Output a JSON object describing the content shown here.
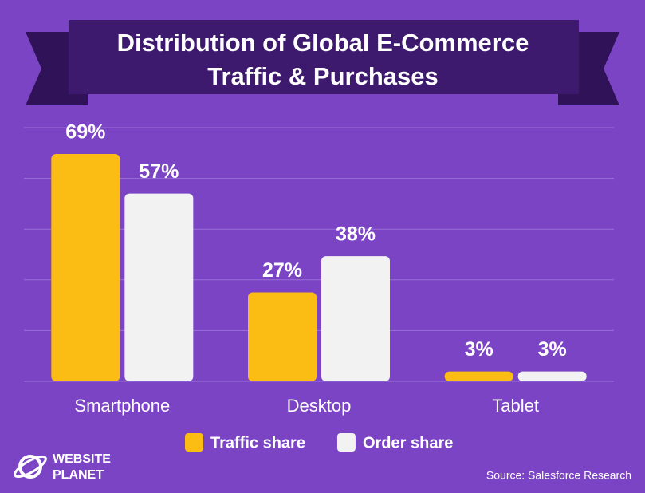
{
  "chart_data": {
    "type": "bar",
    "title": "Distribution of Global E-Commerce Traffic & Purchases",
    "categories": [
      "Smartphone",
      "Desktop",
      "Tablet"
    ],
    "series": [
      {
        "name": "Traffic share",
        "color": "#fbbd14",
        "values": [
          69,
          27,
          3
        ],
        "value_labels": [
          "69%",
          "27%",
          "3%"
        ]
      },
      {
        "name": "Order share",
        "color": "#f2f2f2",
        "values": [
          57,
          38,
          3
        ],
        "value_labels": [
          "57%",
          "38%",
          "3%"
        ]
      }
    ],
    "ylim": [
      0,
      77
    ],
    "yticks": [
      0,
      15.4,
      30.8,
      46.2,
      61.6,
      77
    ],
    "grid": true,
    "source": "Source: Salesforce Research",
    "logo": [
      "WEBSITE",
      "PLANET"
    ]
  }
}
